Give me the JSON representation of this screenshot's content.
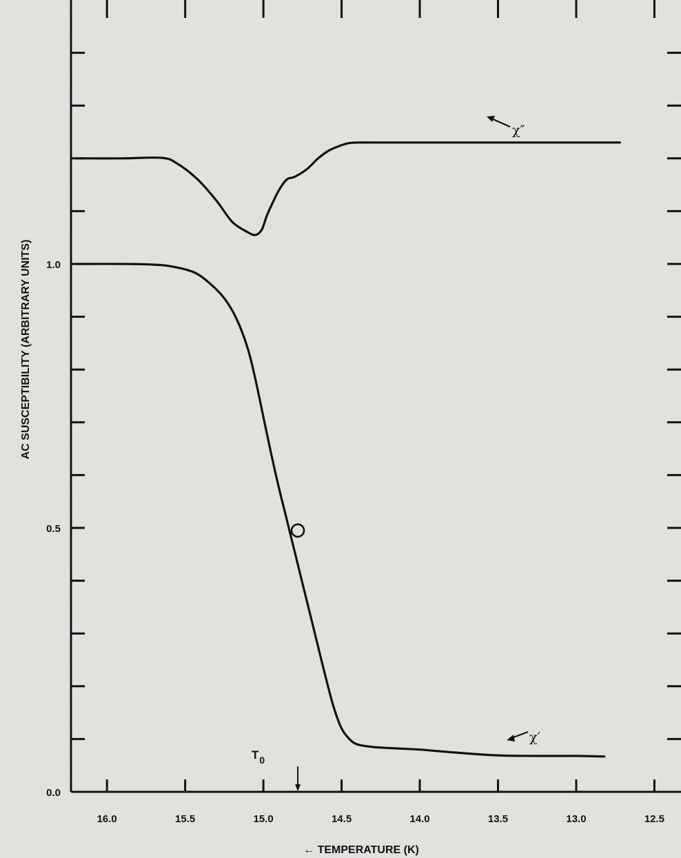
{
  "chart_data": {
    "type": "line",
    "xlabel": "← TEMPERATURE (K)",
    "ylabel": "AC SUSCEPTIBILITY (ARBITRARY UNITS)",
    "xlim": [
      16.23,
      12.33
    ],
    "ylim": [
      0.0,
      1.5
    ],
    "x_reversed": true,
    "grid": false,
    "x_ticks": [
      16.0,
      15.5,
      15.0,
      14.5,
      14.0,
      13.5,
      13.0,
      12.5
    ],
    "x_tick_labels": [
      "16.0",
      "15.5",
      "15.0",
      "14.5",
      "14.0",
      "13.5",
      "13.0",
      "12.5"
    ],
    "y_major_ticks": [
      0.0,
      0.5,
      1.0
    ],
    "y_tick_labels": [
      "0.0",
      "0.5",
      "1.0"
    ],
    "y_minor_tick_step": 0.1,
    "series": [
      {
        "name": "χ″",
        "x": [
          16.2,
          15.9,
          15.65,
          15.55,
          15.42,
          15.3,
          15.2,
          15.1,
          15.05,
          15.01,
          14.98,
          14.95,
          14.9,
          14.85,
          14.8,
          14.72,
          14.65,
          14.58,
          14.5,
          14.45,
          14.38,
          14.3,
          14.2,
          14.0,
          13.5,
          13.0,
          12.72
        ],
        "y": [
          1.2,
          1.2,
          1.201,
          1.19,
          1.16,
          1.12,
          1.08,
          1.06,
          1.055,
          1.065,
          1.09,
          1.11,
          1.14,
          1.16,
          1.165,
          1.18,
          1.2,
          1.215,
          1.225,
          1.229,
          1.23,
          1.23,
          1.23,
          1.23,
          1.23,
          1.23,
          1.23
        ]
      },
      {
        "name": "χ′",
        "x": [
          16.2,
          15.9,
          15.72,
          15.6,
          15.45,
          15.35,
          15.25,
          15.17,
          15.1,
          15.05,
          15.0,
          14.95,
          14.9,
          14.85,
          14.8,
          14.75,
          14.7,
          14.65,
          14.6,
          14.55,
          14.5,
          14.45,
          14.4,
          14.3,
          14.2,
          14.0,
          13.8,
          13.5,
          13.2,
          13.0,
          12.82
        ],
        "y": [
          1.0,
          1.0,
          0.999,
          0.996,
          0.985,
          0.965,
          0.935,
          0.895,
          0.84,
          0.78,
          0.71,
          0.64,
          0.575,
          0.515,
          0.455,
          0.395,
          0.335,
          0.275,
          0.215,
          0.16,
          0.12,
          0.1,
          0.09,
          0.085,
          0.083,
          0.08,
          0.075,
          0.069,
          0.068,
          0.068,
          0.067
        ]
      }
    ],
    "annotations": [
      {
        "text": "χ″",
        "points_to_series": "χ″"
      },
      {
        "text": "χ′",
        "points_to_series": "χ′"
      },
      {
        "text": "T",
        "subscript": "0",
        "x": 14.78,
        "y": 0.0,
        "meaning": "arrow marking T0 on the temperature axis"
      },
      {
        "marker": "open-circle",
        "x": 14.78,
        "y": 0.495
      }
    ]
  }
}
